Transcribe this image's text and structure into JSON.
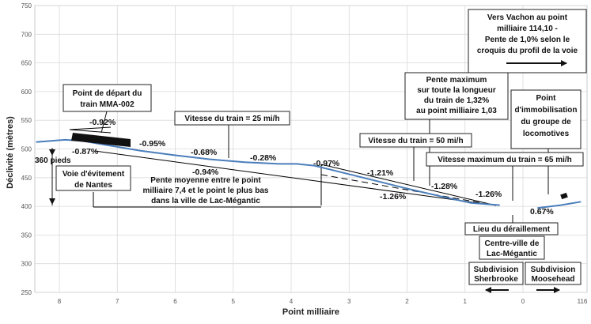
{
  "chart_data": {
    "type": "line",
    "xlabel": "Point milliaire",
    "ylabel": "Déclivité (mètres)",
    "ylim": [
      250,
      750
    ],
    "yticks": [
      250,
      300,
      350,
      400,
      450,
      500,
      550,
      600,
      650,
      700,
      750
    ],
    "xticks": [
      "8",
      "7",
      "6",
      "5",
      "4",
      "3",
      "2",
      "1",
      "0",
      "116"
    ],
    "grid": true,
    "series": [
      {
        "values": [
          {
            "x": 8.4,
            "y": 512
          },
          {
            "x": 7.9,
            "y": 516
          },
          {
            "x": 7.6,
            "y": 514
          },
          {
            "x": 7.2,
            "y": 507
          },
          {
            "x": 6.6,
            "y": 497
          },
          {
            "x": 6.0,
            "y": 489
          },
          {
            "x": 5.4,
            "y": 482
          },
          {
            "x": 4.8,
            "y": 477
          },
          {
            "x": 4.2,
            "y": 474
          },
          {
            "x": 3.9,
            "y": 474
          },
          {
            "x": 3.6,
            "y": 471
          },
          {
            "x": 3.2,
            "y": 461
          },
          {
            "x": 2.6,
            "y": 446
          },
          {
            "x": 2.0,
            "y": 431
          },
          {
            "x": 1.4,
            "y": 417
          },
          {
            "x": 0.9,
            "y": 406
          },
          {
            "x": 0.4,
            "y": 402
          }
        ]
      },
      {
        "values": [
          {
            "x": -0.25,
            "y": 397
          },
          {
            "x": -0.65,
            "y": 402
          },
          {
            "x": -1.0,
            "y": 408
          }
        ]
      }
    ],
    "gradients": [
      "-0.92%",
      "-0.87%",
      "-0.95%",
      "-0.68%",
      "-0.28%",
      "-0.97%",
      "-1.21%",
      "-1.28%",
      "-1.26%",
      "-0.94%",
      "-1.26%",
      "0.67%"
    ],
    "annotations": {
      "depart": [
        "Point de départ du",
        "train MMA-002"
      ],
      "speed25": "Vitesse du train = 25 mi/h",
      "speed50": "Vitesse du train = 50 mi/h",
      "speed65": "Vitesse maximum du train = 65 mi/h",
      "pente_max": [
        "Pente maximum",
        "sur toute la longueur",
        "du train de 1,32%",
        "au point milliaire 1,03"
      ],
      "immobilisation": [
        "Point",
        "d'immobilisation",
        "du groupe de",
        "locomotives"
      ],
      "vachon": [
        "Vers Vachon au point",
        "milliaire 114,10 -",
        "Pente de 1,0% selon le",
        "croquis du profil de la voie"
      ],
      "pieds": "360 pieds",
      "evitement": [
        "Voie d'évitement",
        "de Nantes"
      ],
      "pente_moyenne": [
        "Pente moyenne entre le point",
        "milliaire 7,4 et le point le plus bas",
        "dans la ville de Lac-Mégantic"
      ],
      "deraillement": "Lieu du déraillement",
      "centre_ville": [
        "Centre-ville de",
        "Lac-Mégantic"
      ],
      "sub_sherbrooke": [
        "Subdivision",
        "Sherbrooke"
      ],
      "sub_moosehead": [
        "Subdivision",
        "Moosehead"
      ]
    }
  }
}
